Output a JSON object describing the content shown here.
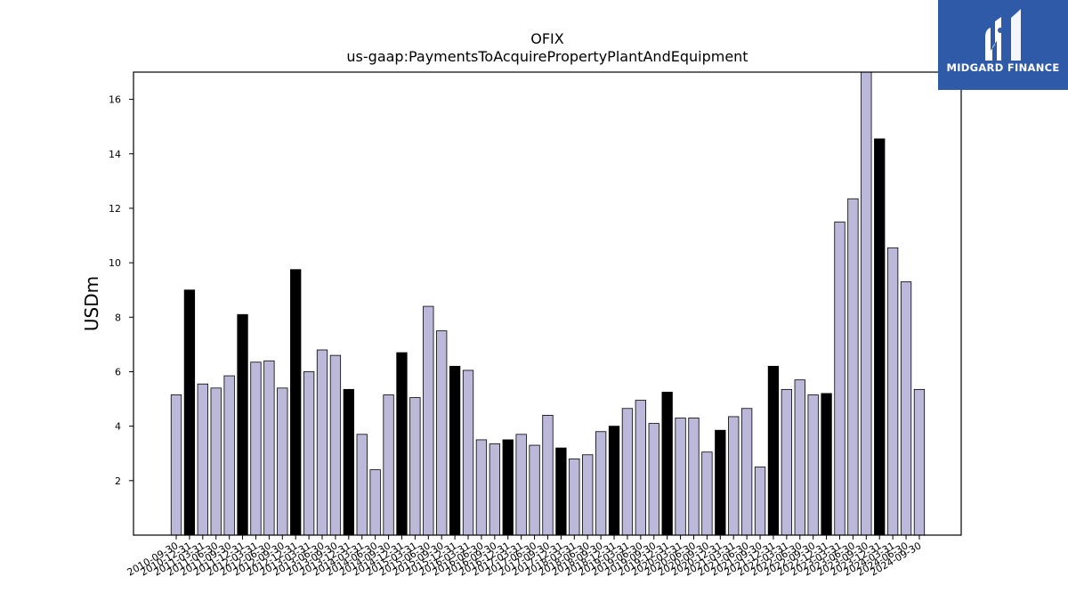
{
  "chart_data": {
    "type": "bar",
    "title": "OFIX",
    "subtitle": "us-gaap:PaymentsToAcquirePropertyPlantAndEquipment",
    "xlabel": "",
    "ylabel": "USDm",
    "ylim": [
      0,
      17
    ],
    "yticks": [
      2,
      4,
      6,
      8,
      10,
      12,
      14,
      16
    ],
    "grid": false,
    "colors": {
      "quarter": "#bcb8d9",
      "year_end": "#000000",
      "edge": "#000000"
    },
    "categories": [
      "2010-09-30",
      "2010-12-31",
      "2011-03-31",
      "2011-06-30",
      "2011-09-30",
      "2011-12-31",
      "2012-03-31",
      "2012-06-30",
      "2012-09-30",
      "2012-12-31",
      "2013-03-31",
      "2013-06-30",
      "2013-09-30",
      "2013-12-31",
      "2014-03-31",
      "2014-06-30",
      "2014-09-30",
      "2014-12-31",
      "2015-03-31",
      "2015-06-30",
      "2015-09-30",
      "2015-12-31",
      "2016-03-31",
      "2016-06-30",
      "2016-09-30",
      "2016-12-31",
      "2017-03-31",
      "2017-06-30",
      "2017-09-30",
      "2017-12-31",
      "2018-03-31",
      "2018-06-30",
      "2018-09-30",
      "2018-12-31",
      "2019-03-31",
      "2019-06-30",
      "2019-09-30",
      "2019-12-31",
      "2020-03-31",
      "2020-06-30",
      "2020-09-30",
      "2020-12-31",
      "2021-03-31",
      "2021-06-30",
      "2021-09-30",
      "2021-12-31",
      "2022-03-31",
      "2022-06-30",
      "2022-09-30",
      "2022-12-31",
      "2023-03-31",
      "2023-06-30",
      "2023-09-30",
      "2023-12-31",
      "2024-03-31",
      "2024-06-30",
      "2024-09-30"
    ],
    "values": [
      5.15,
      9.0,
      5.55,
      5.4,
      5.85,
      8.1,
      6.35,
      6.4,
      5.4,
      9.75,
      6.0,
      6.8,
      6.6,
      5.35,
      3.7,
      2.4,
      5.15,
      6.7,
      5.05,
      8.4,
      7.5,
      6.2,
      6.05,
      3.5,
      3.35,
      3.5,
      3.7,
      3.3,
      4.4,
      3.2,
      2.8,
      2.95,
      3.8,
      4.0,
      4.65,
      4.95,
      4.1,
      5.25,
      4.3,
      4.3,
      3.05,
      3.85,
      4.35,
      4.65,
      2.5,
      6.2,
      5.35,
      5.7,
      5.15,
      5.2,
      11.5,
      12.35,
      17.0,
      14.55,
      10.55,
      9.3,
      5.35
    ],
    "highlight": [
      false,
      true,
      false,
      false,
      false,
      true,
      false,
      false,
      false,
      true,
      false,
      false,
      false,
      true,
      false,
      false,
      false,
      true,
      false,
      false,
      false,
      true,
      false,
      false,
      false,
      true,
      false,
      false,
      false,
      true,
      false,
      false,
      false,
      true,
      false,
      false,
      false,
      true,
      false,
      false,
      false,
      true,
      false,
      false,
      false,
      true,
      false,
      false,
      false,
      true,
      false,
      false,
      false,
      true,
      false,
      false,
      false
    ]
  },
  "logo": {
    "text": "MIDGARD FINANCE",
    "background": "#2f5aa8"
  }
}
